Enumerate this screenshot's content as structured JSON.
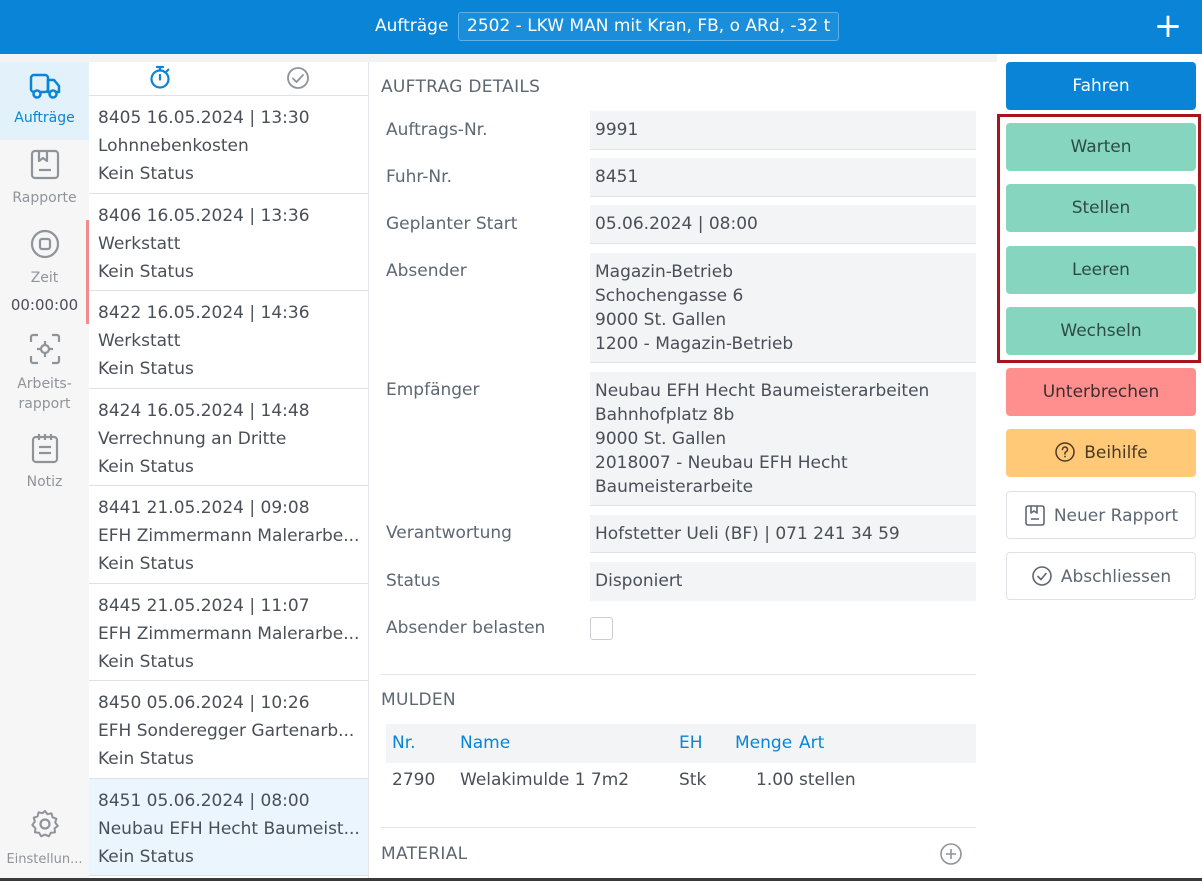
{
  "header": {
    "title": "Aufträge",
    "vehicle": "2502 - LKW MAN mit Kran, FB, o ARd, -32 t",
    "add_label": "+"
  },
  "nav": {
    "items": [
      {
        "label": "Aufträge",
        "icon": "truck-icon"
      },
      {
        "label": "Rapporte",
        "icon": "report-icon"
      },
      {
        "label": "Zeit",
        "icon": "stop-icon"
      },
      {
        "label": "Arbeits-",
        "label2": "rapport",
        "icon": "scan-icon"
      },
      {
        "label": "Notiz",
        "icon": "notepad-icon"
      },
      {
        "label": "Einstellun...",
        "icon": "gear-icon"
      }
    ],
    "timer": "00:00:00"
  },
  "orders": [
    {
      "head": "8405  16.05.2024 | 13:30",
      "title": "Lohnnebenkosten",
      "status": "Kein Status"
    },
    {
      "head": "8406  16.05.2024 | 13:36",
      "title": "Werkstatt",
      "status": "Kein Status"
    },
    {
      "head": "8422  16.05.2024 | 14:36",
      "title": "Werkstatt",
      "status": "Kein Status"
    },
    {
      "head": "8424  16.05.2024 | 14:48",
      "title": "Verrechnung an Dritte",
      "status": "Kein Status"
    },
    {
      "head": "8441  21.05.2024 | 09:08",
      "title": "EFH Zimmermann Malerarbe...",
      "status": "Kein Status"
    },
    {
      "head": "8445  21.05.2024 | 11:07",
      "title": "EFH Zimmermann Malerarbe...",
      "status": "Kein Status"
    },
    {
      "head": "8450  05.06.2024 | 10:26",
      "title": "EFH Sonderegger Gartenarb...",
      "status": "Kein Status"
    },
    {
      "head": "8451  05.06.2024 | 08:00",
      "title": "Neubau EFH Hecht Baumeist...",
      "status": "Kein Status"
    }
  ],
  "details": {
    "section_title": "AUFTRAG DETAILS",
    "auftrags_nr_label": "Auftrags-Nr.",
    "auftrags_nr": "9991",
    "fuhr_nr_label": "Fuhr-Nr.",
    "fuhr_nr": "8451",
    "start_label": "Geplanter Start",
    "start": "05.06.2024 | 08:00",
    "absender_label": "Absender",
    "absender": [
      "Magazin-Betrieb",
      "Schochengasse 6",
      "9000 St. Gallen",
      "1200 - Magazin-Betrieb"
    ],
    "empfaenger_label": "Empfänger",
    "empfaenger": [
      "Neubau EFH Hecht Baumeisterarbeiten",
      "Bahnhofplatz 8b",
      "9000 St. Gallen",
      "2018007 - Neubau EFH Hecht",
      "Baumeisterarbeite"
    ],
    "verantwortung_label": "Verantwortung",
    "verantwortung": "Hofstetter Ueli (BF) | 071 241 34 59",
    "status_label": "Status",
    "status": "Disponiert",
    "belasten_label": "Absender belasten"
  },
  "mulden": {
    "section_title": "MULDEN",
    "columns": [
      "Nr.",
      "Name",
      "EH",
      "Menge",
      "Art"
    ],
    "rows": [
      {
        "nr": "2790",
        "name": "Welakimulde 1 7m2",
        "eh": "Stk",
        "menge": "1.00",
        "art": "stellen"
      }
    ]
  },
  "material": {
    "section_title": "MATERIAL"
  },
  "actions": {
    "fahren": "Fahren",
    "warten": "Warten",
    "stellen": "Stellen",
    "leeren": "Leeren",
    "wechseln": "Wechseln",
    "unterbrechen": "Unterbrechen",
    "beihilfe": "Beihilfe",
    "neuer_rapport": "Neuer Rapport",
    "abschliessen": "Abschliessen"
  },
  "colors": {
    "brand": "#0a84d6",
    "teal": "#86d6bf",
    "red": "#ff8f8f",
    "yellow": "#ffc978",
    "highlight": "#a8141c"
  }
}
